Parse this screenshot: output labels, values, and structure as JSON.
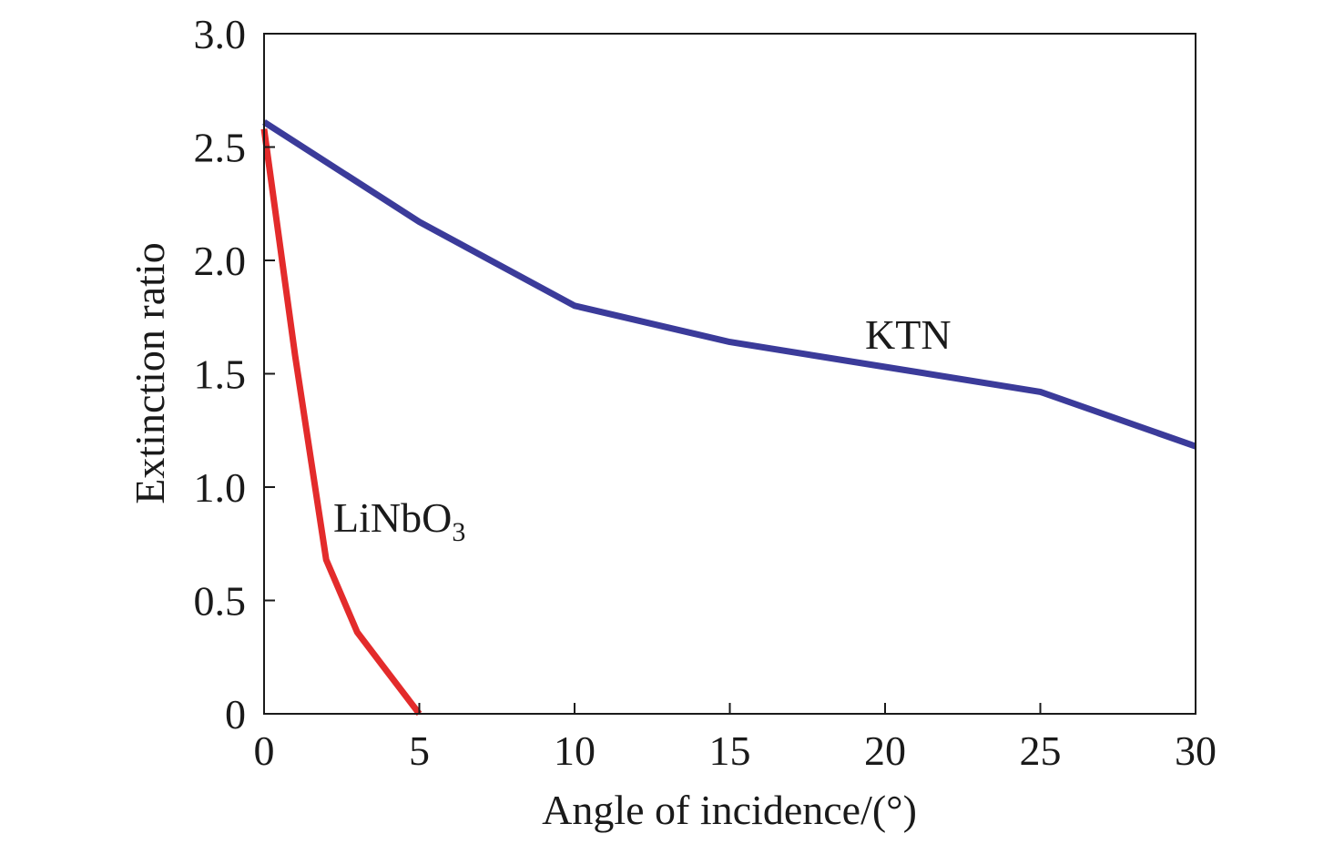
{
  "chart_data": {
    "type": "line",
    "title": "",
    "xlabel": "Angle of incidence/(°)",
    "ylabel": "Extinction ratio",
    "xlim": [
      0,
      30
    ],
    "ylim": [
      0,
      3.0
    ],
    "x_ticks": [
      {
        "value": 0,
        "label": "0"
      },
      {
        "value": 5,
        "label": "5"
      },
      {
        "value": 10,
        "label": "10"
      },
      {
        "value": 15,
        "label": "15"
      },
      {
        "value": 20,
        "label": "20"
      },
      {
        "value": 25,
        "label": "25"
      },
      {
        "value": 30,
        "label": "30"
      }
    ],
    "y_ticks": [
      {
        "value": 0,
        "label": "0"
      },
      {
        "value": 0.5,
        "label": "0.5"
      },
      {
        "value": 1.0,
        "label": "1.0"
      },
      {
        "value": 1.5,
        "label": "1.5"
      },
      {
        "value": 2.0,
        "label": "2.0"
      },
      {
        "value": 2.5,
        "label": "2.5"
      },
      {
        "value": 3.0,
        "label": "3.0"
      }
    ],
    "grid": false,
    "legend": "none",
    "series": [
      {
        "name": "KTN",
        "label": {
          "main": "KTN",
          "sub": ""
        },
        "color": "#3b3b9a",
        "x": [
          0,
          5,
          10,
          15,
          20,
          25,
          30
        ],
        "y": [
          2.61,
          2.17,
          1.8,
          1.64,
          1.53,
          1.42,
          1.18
        ]
      },
      {
        "name": "LiNbO3",
        "label": {
          "main": "LiNbO",
          "sub": "3"
        },
        "color": "#e32b2b",
        "x": [
          0,
          1,
          2,
          3,
          4,
          5
        ],
        "y": [
          2.58,
          1.58,
          0.68,
          0.36,
          0.18,
          0.0
        ]
      }
    ]
  }
}
